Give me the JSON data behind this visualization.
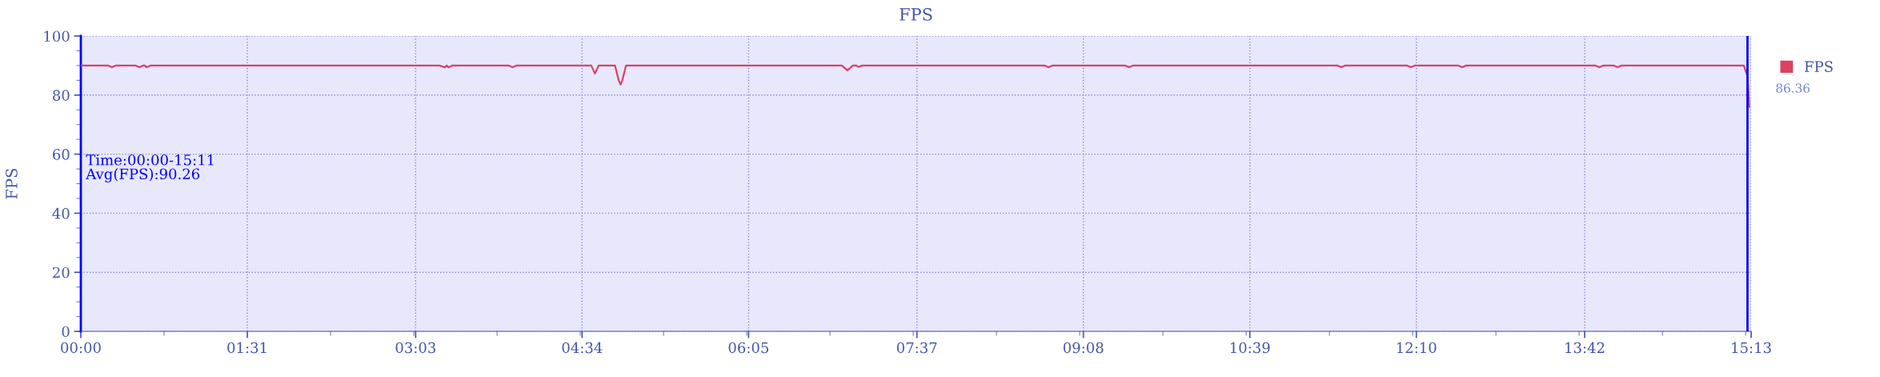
{
  "chart_data": {
    "type": "line",
    "title": "FPS",
    "ylabel": "FPS",
    "x": [
      0,
      15,
      17,
      19,
      30,
      32,
      34,
      35,
      36,
      38,
      196,
      199,
      200,
      201,
      203,
      234,
      236,
      238,
      279,
      281,
      283,
      292,
      294,
      295,
      296,
      298,
      416,
      419,
      422,
      424,
      425,
      427,
      527,
      529,
      531,
      571,
      573,
      575,
      687,
      689,
      691,
      725,
      727,
      729,
      753,
      755,
      757,
      828,
      830,
      832,
      838,
      840,
      842,
      909,
      911,
      912
    ],
    "series": [
      {
        "name": "FPS",
        "color": "#dc4064",
        "values": [
          90,
          90,
          89.4,
          90,
          90,
          89.4,
          90,
          90,
          89.4,
          90,
          90,
          89.4,
          90,
          89.4,
          90,
          90,
          89.4,
          90,
          90,
          87.3,
          90,
          90,
          85,
          83.6,
          85,
          90,
          90,
          88.4,
          90,
          90,
          89.5,
          90,
          90,
          89.4,
          90,
          90,
          89.4,
          90,
          90,
          89.4,
          90,
          90,
          89.4,
          90,
          90,
          89.4,
          90,
          90,
          89.4,
          90,
          90,
          89.4,
          90,
          90,
          86.36,
          76
        ]
      }
    ],
    "xlim": [
      0,
      913
    ],
    "xticks": [
      {
        "value": 0,
        "label": "00:00"
      },
      {
        "value": 91,
        "label": "01:31"
      },
      {
        "value": 183,
        "label": "03:03"
      },
      {
        "value": 274,
        "label": "04:34"
      },
      {
        "value": 365,
        "label": "06:05"
      },
      {
        "value": 457,
        "label": "07:37"
      },
      {
        "value": 548,
        "label": "09:08"
      },
      {
        "value": 639,
        "label": "10:39"
      },
      {
        "value": 730,
        "label": "12:10"
      },
      {
        "value": 822,
        "label": "13:42"
      },
      {
        "value": 913,
        "label": "15:13"
      }
    ],
    "ylim": [
      0,
      100
    ],
    "yticks": [
      0,
      20,
      40,
      60,
      80,
      100
    ],
    "ref_lines": [
      {
        "axis": "x",
        "value": 911,
        "color": "#0000ff"
      }
    ],
    "annotations": [
      "Time:00:00-15:11\nAvg(FPS):90.26",
      "86.36"
    ],
    "grid": true,
    "legend": "right",
    "marker": "none",
    "line_style": "solid"
  }
}
